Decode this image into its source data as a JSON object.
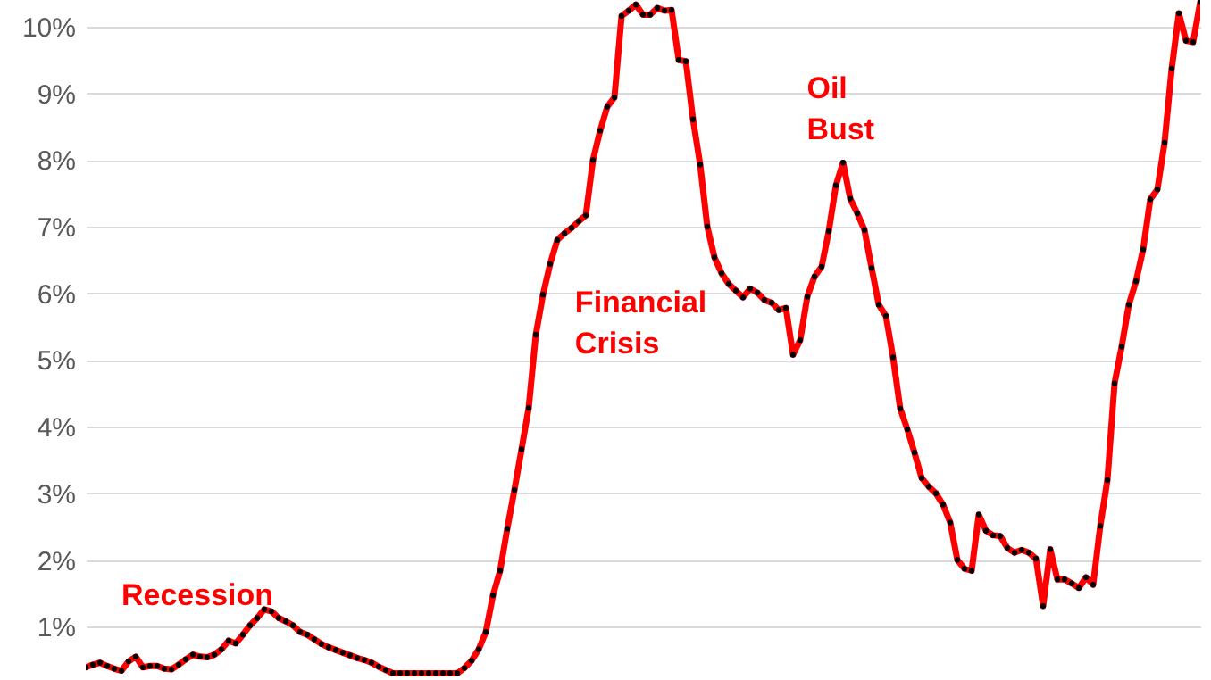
{
  "chart_data": {
    "type": "line",
    "categories": [
      null,
      null,
      null,
      null,
      null,
      null,
      null,
      null,
      null,
      null,
      null,
      null,
      null,
      null,
      null,
      null,
      null,
      null,
      null,
      null,
      null,
      null,
      null,
      null,
      null,
      null,
      null,
      null,
      null,
      null,
      null,
      null,
      null,
      null,
      null,
      null,
      null,
      null,
      null,
      null,
      null,
      null,
      null,
      null,
      null,
      null,
      null,
      null,
      null,
      null,
      null,
      null,
      null,
      null,
      null,
      null,
      null,
      null,
      null,
      null,
      null,
      null,
      null,
      null,
      null,
      null,
      null,
      null,
      null,
      null,
      null,
      null,
      null,
      null,
      null,
      null,
      null,
      null,
      null,
      null,
      null,
      null,
      null,
      null,
      null,
      null,
      null,
      null,
      null,
      null,
      null,
      null,
      null,
      null,
      null,
      null,
      null,
      null,
      null,
      null,
      null,
      null,
      null,
      null,
      null,
      null,
      null,
      null,
      null,
      null,
      null,
      null,
      null,
      null,
      null,
      null,
      null,
      null,
      null,
      null,
      null,
      null,
      null,
      null,
      null,
      null,
      null,
      null,
      null,
      null,
      null,
      null,
      null,
      null,
      null,
      null,
      null,
      null,
      null,
      null,
      null,
      null,
      null,
      null,
      null,
      null,
      null,
      null,
      null,
      null,
      null,
      null,
      null,
      null,
      null,
      null,
      null
    ],
    "series": [
      {
        "color": "#ff0000",
        "values": [
          0.39,
          0.43,
          0.46,
          0.41,
          0.37,
          0.34,
          0.48,
          0.55,
          0.39,
          0.41,
          0.41,
          0.37,
          0.36,
          0.43,
          0.51,
          0.58,
          0.55,
          0.54,
          0.58,
          0.66,
          0.79,
          0.75,
          0.88,
          1.02,
          1.13,
          1.26,
          1.23,
          1.13,
          1.08,
          1.02,
          0.92,
          0.88,
          0.81,
          0.74,
          0.69,
          0.65,
          0.61,
          0.57,
          0.53,
          0.5,
          0.46,
          0.4,
          0.35,
          0.3,
          0.3,
          0.3,
          0.3,
          0.3,
          0.3,
          0.3,
          0.3,
          0.3,
          0.3,
          0.38,
          0.49,
          0.66,
          0.92,
          1.47,
          1.84,
          2.47,
          3.05,
          3.66,
          4.28,
          5.38,
          5.98,
          6.44,
          6.8,
          6.9,
          6.98,
          7.08,
          7.17,
          8.0,
          8.44,
          8.8,
          8.94,
          10.16,
          10.24,
          10.33,
          10.18,
          10.18,
          10.28,
          10.24,
          10.25,
          9.5,
          9.48,
          8.61,
          7.93,
          7.0,
          6.54,
          6.3,
          6.14,
          6.04,
          5.94,
          6.07,
          6.01,
          5.9,
          5.86,
          5.75,
          5.78,
          5.08,
          5.3,
          5.95,
          6.25,
          6.4,
          6.93,
          7.62,
          7.96,
          7.42,
          7.2,
          6.95,
          6.38,
          5.83,
          5.66,
          5.04,
          4.27,
          3.96,
          3.61,
          3.23,
          3.1,
          3.0,
          2.83,
          2.56,
          2.0,
          1.87,
          1.84,
          2.68,
          2.44,
          2.37,
          2.36,
          2.18,
          2.11,
          2.15,
          2.11,
          2.02,
          1.31,
          2.16,
          1.71,
          1.71,
          1.65,
          1.58,
          1.74,
          1.63,
          2.51,
          3.2,
          4.65,
          5.2,
          5.83,
          6.18,
          6.66,
          7.41,
          7.56,
          8.26,
          9.37,
          10.2,
          9.79,
          9.77,
          10.37
        ]
      }
    ],
    "ylim": [
      0.2,
      10.4
    ],
    "yticks": [
      {
        "value": 1,
        "label": "1%"
      },
      {
        "value": 2,
        "label": "2%"
      },
      {
        "value": 3,
        "label": "3%"
      },
      {
        "value": 4,
        "label": "4%"
      },
      {
        "value": 5,
        "label": "5%"
      },
      {
        "value": 6,
        "label": "6%"
      },
      {
        "value": 7,
        "label": "7%"
      },
      {
        "value": 8,
        "label": "8%"
      },
      {
        "value": 9,
        "label": "9%"
      },
      {
        "value": 10,
        "label": "10%"
      }
    ],
    "tick_labels": "y",
    "grid": "y",
    "marker": "circle",
    "annotations": [
      "Recession",
      "Financial Crisis",
      "Oil Bust"
    ]
  }
}
